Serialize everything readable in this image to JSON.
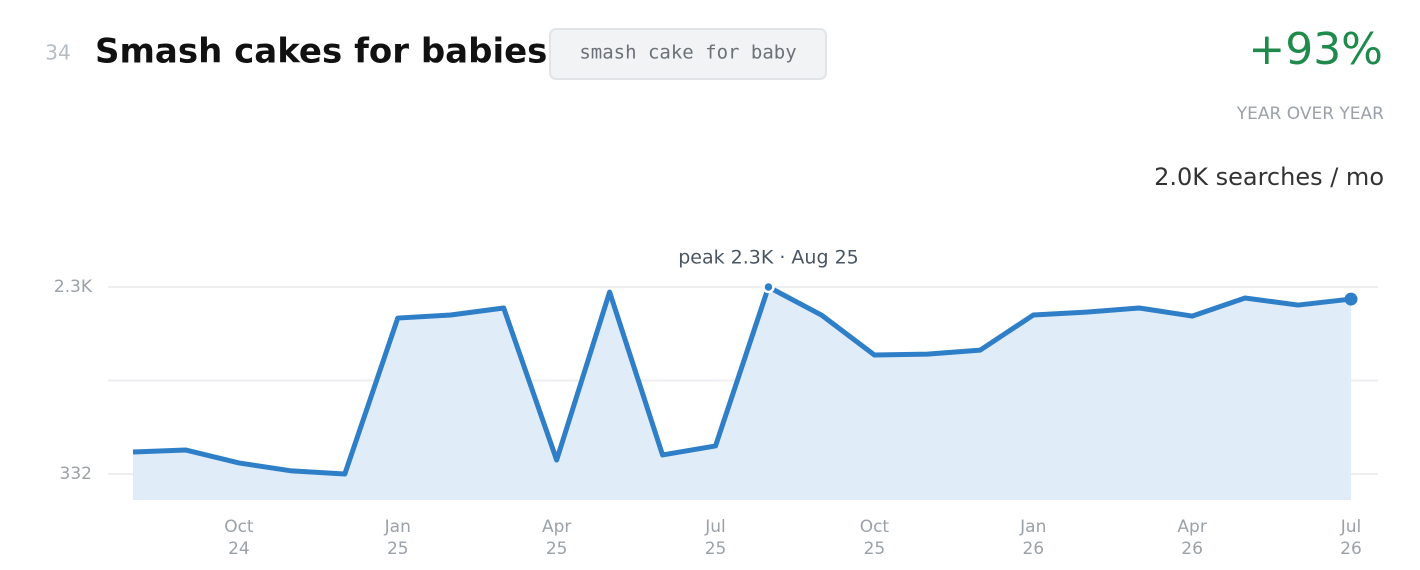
{
  "header": {
    "rank": "34",
    "title": "Smash cakes for babies",
    "keyword": "smash cake for baby",
    "growth": "+93%",
    "growth_label": "YEAR OVER YEAR",
    "volume": "2.0K searches / mo"
  },
  "chart_data": {
    "type": "line",
    "categories": [
      null,
      null,
      {
        "month": "Oct",
        "year": "24"
      },
      null,
      null,
      {
        "month": "Jan",
        "year": "25"
      },
      null,
      null,
      {
        "month": "Apr",
        "year": "25"
      },
      null,
      null,
      {
        "month": "Jul",
        "year": "25"
      },
      null,
      null,
      {
        "month": "Oct",
        "year": "25"
      },
      null,
      null,
      {
        "month": "Jan",
        "year": "26"
      },
      null,
      null,
      {
        "month": "Apr",
        "year": "26"
      },
      null,
      null,
      {
        "month": "Jul",
        "year": "26"
      }
    ],
    "series": [
      {
        "color": "#2f7fc8",
        "values": [
          563,
          584,
          448,
          364,
          332,
          1973,
          2005,
          2079,
          479,
          2247,
          532,
          627,
          2300,
          2005,
          1584,
          1594,
          1636,
          2005,
          2036,
          2079,
          1994,
          2184,
          2110,
          2173
        ]
      }
    ],
    "area_color": "#e0ecf7",
    "ylim": [
      58,
      2300
    ],
    "yticks": [
      332,
      {
        "value": 1316
      },
      {
        "value": 2300,
        "label": "2.3K"
      }
    ],
    "grid": true,
    "annotation": "peak 2.3K · Aug 25"
  }
}
